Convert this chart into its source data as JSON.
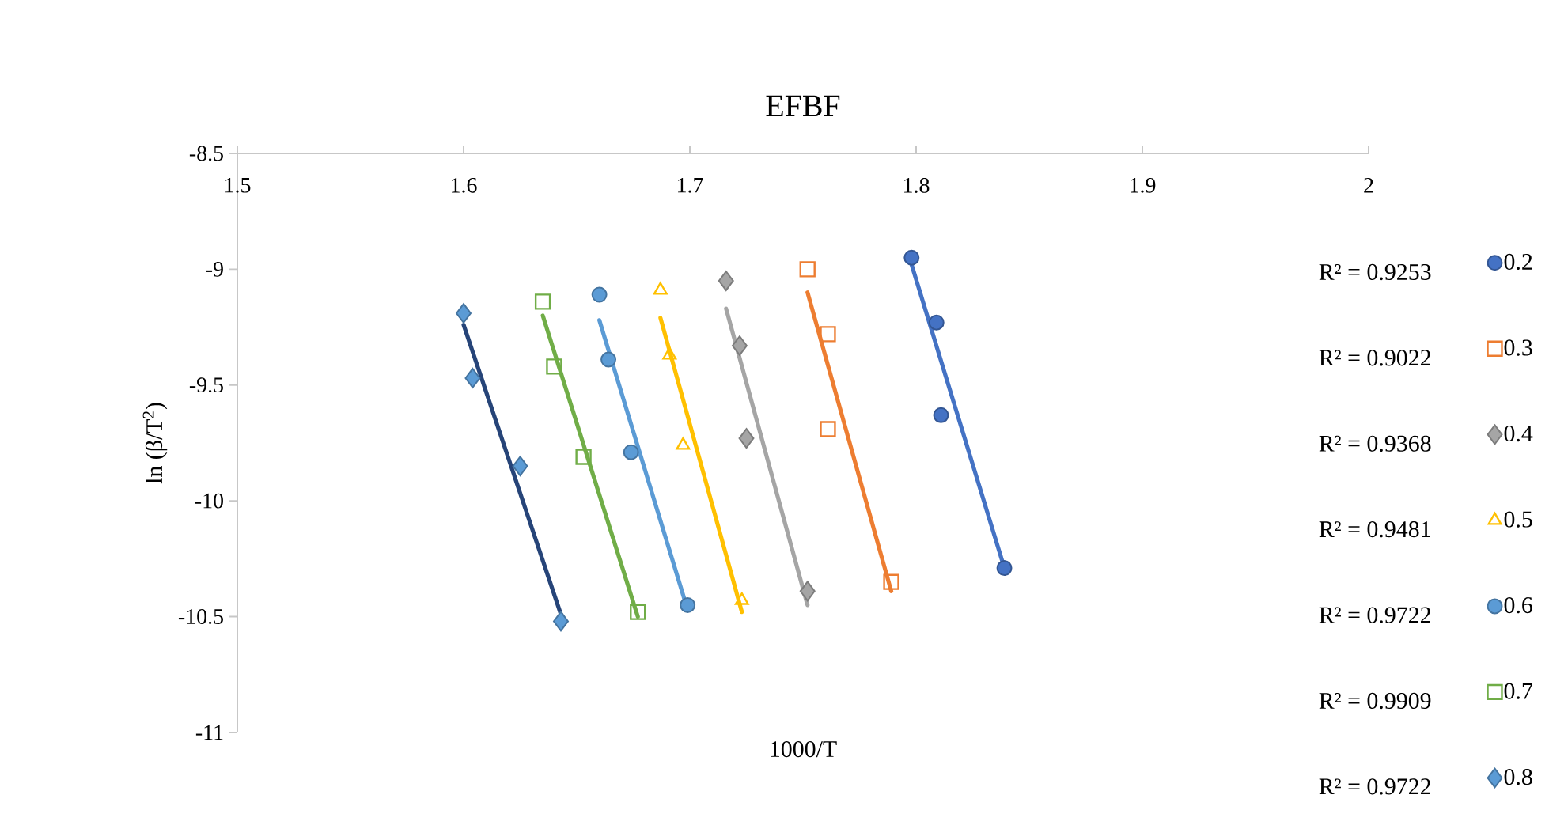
{
  "chart_data": {
    "type": "scatter",
    "title": "EFBF",
    "xlabel": "1000/T",
    "ylabel": "ln (β/T$^{2}$)",
    "xlim": [
      1.5,
      2
    ],
    "xticks": [
      1.5,
      1.6,
      1.7,
      1.8,
      1.9,
      2
    ],
    "ylim": [
      -11,
      -8.5
    ],
    "yticks": [
      -11,
      -10.5,
      -10,
      -9.5,
      -9,
      -8.5
    ],
    "grid": false,
    "legend": "right",
    "annotations": [
      "R² = 0.9253",
      "R² = 0.9022",
      "R² = 0.9368",
      "R² = 0.9481",
      "R² = 0.9722",
      "R² = 0.9909",
      "R² = 0.9722"
    ],
    "series": [
      {
        "name": "0.2",
        "color": "#4472c4",
        "marker": "circle",
        "x": [
          1.798,
          1.809,
          1.811,
          1.839
        ],
        "values": [
          -8.95,
          -9.23,
          -9.63,
          -10.29
        ]
      },
      {
        "name": "0.3",
        "color": "#ed7d31",
        "marker": "square",
        "x": [
          1.752,
          1.761,
          1.761,
          1.789
        ],
        "values": [
          -9.0,
          -9.28,
          -9.69,
          -10.35
        ]
      },
      {
        "name": "0.4",
        "color": "#a5a5a5",
        "marker": "diamond",
        "x": [
          1.716,
          1.722,
          1.725,
          1.752
        ],
        "values": [
          -9.05,
          -9.33,
          -9.73,
          -10.39
        ]
      },
      {
        "name": "0.5",
        "color": "#ffc000",
        "marker": "triangle",
        "x": [
          1.687,
          1.691,
          1.697,
          1.723
        ],
        "values": [
          -9.09,
          -9.37,
          -9.76,
          -10.43
        ]
      },
      {
        "name": "0.6",
        "color": "#5b9bd5",
        "marker": "circle",
        "x": [
          1.66,
          1.664,
          1.674,
          1.699
        ],
        "values": [
          -9.11,
          -9.39,
          -9.79,
          -10.45
        ]
      },
      {
        "name": "0.7",
        "color": "#70ad47",
        "marker": "square",
        "x": [
          1.635,
          1.64,
          1.653,
          1.677
        ],
        "values": [
          -9.14,
          -9.42,
          -9.81,
          -10.48
        ]
      },
      {
        "name": "0.8",
        "color": "#5b9bd5",
        "marker": "diamond",
        "x": [
          1.6,
          1.604,
          1.625,
          1.643
        ],
        "values": [
          -9.19,
          -9.47,
          -9.85,
          -10.52
        ]
      },
      {
        "type": "line",
        "color": "#4472c4",
        "x": [
          1.798,
          1.839
        ],
        "values": [
          -8.98,
          -10.29
        ]
      },
      {
        "type": "line",
        "color": "#ed7d31",
        "x": [
          1.752,
          1.789
        ],
        "values": [
          -9.1,
          -10.39
        ]
      },
      {
        "type": "line",
        "color": "#a5a5a5",
        "x": [
          1.716,
          1.752
        ],
        "values": [
          -9.17,
          -10.45
        ]
      },
      {
        "type": "line",
        "color": "#ffc000",
        "x": [
          1.687,
          1.723
        ],
        "values": [
          -9.21,
          -10.48
        ]
      },
      {
        "type": "line",
        "color": "#5b9bd5",
        "x": [
          1.66,
          1.699
        ],
        "values": [
          -9.22,
          -10.47
        ]
      },
      {
        "type": "line",
        "color": "#70ad47",
        "x": [
          1.635,
          1.677
        ],
        "values": [
          -9.2,
          -10.5
        ]
      },
      {
        "type": "line",
        "color": "#264478",
        "x": [
          1.6,
          1.643
        ],
        "values": [
          -9.24,
          -10.49
        ]
      }
    ]
  }
}
